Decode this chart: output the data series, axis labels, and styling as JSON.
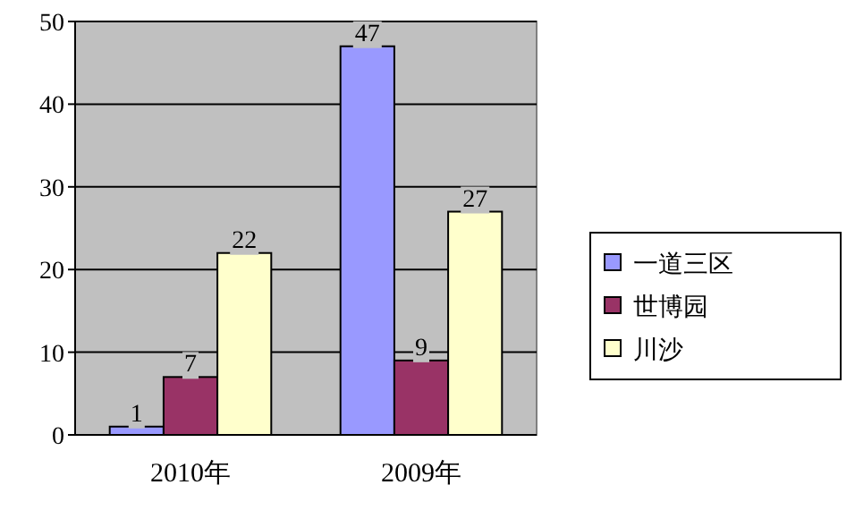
{
  "chart_data": {
    "type": "bar",
    "categories": [
      "2010年",
      "2009年"
    ],
    "series": [
      {
        "name": "一道三区",
        "color": "#9999ff",
        "values": [
          1,
          47
        ]
      },
      {
        "name": "世博园",
        "color": "#993366",
        "values": [
          7,
          9
        ]
      },
      {
        "name": "川沙",
        "color": "#ffffcc",
        "values": [
          22,
          27
        ]
      }
    ],
    "ylim": [
      0,
      50
    ],
    "yticks": [
      0,
      10,
      20,
      30,
      40,
      50
    ],
    "grid": "y",
    "legend": "right",
    "data_labels": true
  }
}
